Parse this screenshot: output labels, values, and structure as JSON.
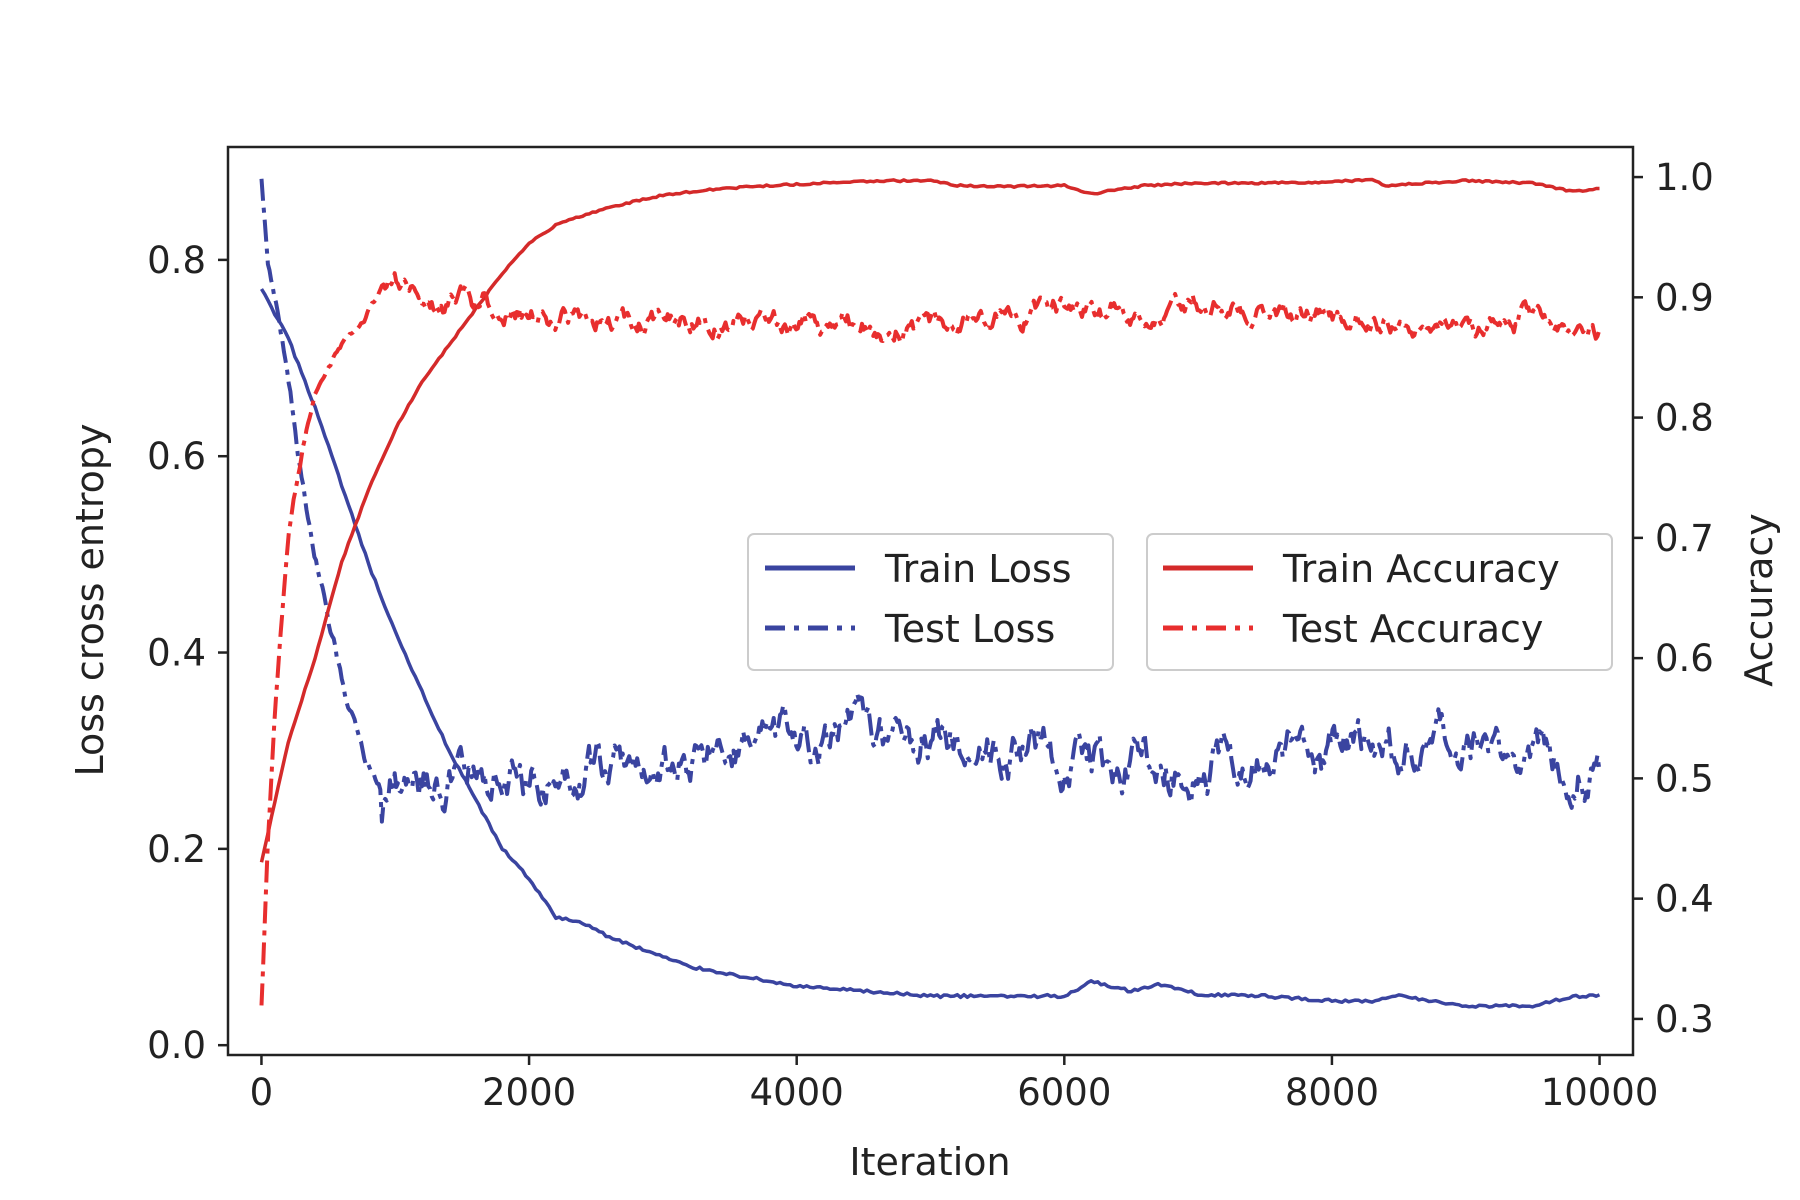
{
  "chart_data": {
    "type": "line",
    "title": "",
    "xlabel": "Iteration",
    "ylabel_left": "Loss cross entropy",
    "ylabel_right": "Accuracy",
    "xlim": [
      -250,
      10250
    ],
    "ylim_left": [
      -0.01,
      0.915
    ],
    "ylim_right": [
      0.27,
      1.025
    ],
    "x_ticks": [
      0,
      2000,
      4000,
      6000,
      8000,
      10000
    ],
    "x_tick_labels": [
      "0",
      "2000",
      "4000",
      "6000",
      "8000",
      "10000"
    ],
    "y_left_ticks": [
      0.0,
      0.2,
      0.4,
      0.6,
      0.8
    ],
    "y_left_tick_labels": [
      "0.0",
      "0.2",
      "0.4",
      "0.6",
      "0.8"
    ],
    "y_right_ticks": [
      0.3,
      0.4,
      0.5,
      0.6,
      0.7,
      0.8,
      0.9,
      1.0
    ],
    "y_right_tick_labels": [
      "0.3",
      "0.4",
      "0.5",
      "0.6",
      "0.7",
      "0.8",
      "0.9",
      "1.0"
    ],
    "colors": {
      "loss": "#3a44a0",
      "train_accuracy": "#d42a2a",
      "test_accuracy": "#e82e2e"
    },
    "legend": {
      "loss": [
        {
          "label": "Train Loss",
          "style": "solid"
        },
        {
          "label": "Test Loss",
          "style": "dashdot"
        }
      ],
      "accuracy": [
        {
          "label": "Train Accuracy",
          "style": "solid"
        },
        {
          "label": "Test Accuracy",
          "style": "dashdot"
        }
      ],
      "placement": "center-right"
    },
    "series": [
      {
        "name": "Train Loss",
        "axis": "left",
        "style": "solid",
        "color": "#3a44a0",
        "x": [
          0,
          200,
          400,
          600,
          800,
          1000,
          1200,
          1400,
          1600,
          1800,
          2000,
          2200,
          2400,
          2600,
          2800,
          3000,
          3200,
          3400,
          3600,
          3800,
          4000,
          4500,
          5000,
          5500,
          6000,
          6200,
          6500,
          6700,
          7000,
          7500,
          8000,
          8300,
          8500,
          9000,
          9500,
          9800,
          10000
        ],
        "values": [
          0.77,
          0.72,
          0.65,
          0.57,
          0.49,
          0.42,
          0.36,
          0.3,
          0.25,
          0.2,
          0.17,
          0.13,
          0.125,
          0.11,
          0.1,
          0.09,
          0.08,
          0.075,
          0.07,
          0.065,
          0.06,
          0.055,
          0.05,
          0.05,
          0.05,
          0.065,
          0.055,
          0.062,
          0.052,
          0.05,
          0.045,
          0.045,
          0.05,
          0.04,
          0.04,
          0.05,
          0.05
        ]
      },
      {
        "name": "Test Loss",
        "axis": "left",
        "style": "dashdot",
        "color": "#3a44a0",
        "x": [
          0,
          50,
          100,
          200,
          300,
          400,
          500,
          600,
          700,
          800,
          900,
          1000,
          1500,
          2000,
          2500,
          3000,
          3500,
          4000,
          4500,
          5000,
          5500,
          6000,
          6500,
          7000,
          7500,
          8000,
          8500,
          9000,
          9500,
          10000
        ],
        "values": [
          0.88,
          0.8,
          0.76,
          0.68,
          0.58,
          0.5,
          0.43,
          0.37,
          0.33,
          0.29,
          0.27,
          0.28,
          0.27,
          0.27,
          0.29,
          0.28,
          0.3,
          0.3,
          0.32,
          0.32,
          0.31,
          0.29,
          0.29,
          0.29,
          0.29,
          0.3,
          0.3,
          0.29,
          0.3,
          0.29
        ]
      },
      {
        "name": "Train Accuracy",
        "axis": "right",
        "style": "solid",
        "color": "#d42a2a",
        "x": [
          0,
          100,
          200,
          400,
          600,
          800,
          1000,
          1200,
          1400,
          1600,
          1800,
          2000,
          2200,
          2400,
          2600,
          2800,
          3000,
          3400,
          3800,
          4200,
          4600,
          5000,
          5200,
          5500,
          6000,
          6200,
          6600,
          7000,
          7500,
          8000,
          8300,
          8400,
          9000,
          9500,
          9800,
          10000
        ],
        "values": [
          0.43,
          0.48,
          0.53,
          0.6,
          0.68,
          0.74,
          0.79,
          0.83,
          0.86,
          0.89,
          0.92,
          0.945,
          0.96,
          0.968,
          0.975,
          0.98,
          0.985,
          0.99,
          0.993,
          0.995,
          0.997,
          0.997,
          0.993,
          0.992,
          0.993,
          0.986,
          0.993,
          0.995,
          0.995,
          0.996,
          0.998,
          0.993,
          0.997,
          0.995,
          0.988,
          0.99
        ]
      },
      {
        "name": "Test Accuracy",
        "axis": "right",
        "style": "dashdot",
        "color": "#e82e2e",
        "x": [
          0,
          50,
          100,
          200,
          300,
          400,
          500,
          600,
          700,
          800,
          900,
          1000,
          1100,
          1200,
          1500,
          2000,
          2500,
          3000,
          3500,
          4000,
          4500,
          5000,
          5500,
          6000,
          6500,
          7000,
          7500,
          8000,
          8500,
          9000,
          9500,
          10000
        ],
        "values": [
          0.31,
          0.45,
          0.55,
          0.7,
          0.77,
          0.82,
          0.845,
          0.86,
          0.87,
          0.89,
          0.905,
          0.915,
          0.9,
          0.89,
          0.895,
          0.89,
          0.88,
          0.88,
          0.88,
          0.875,
          0.88,
          0.875,
          0.885,
          0.89,
          0.89,
          0.895,
          0.885,
          0.885,
          0.88,
          0.88,
          0.885,
          0.875
        ]
      }
    ]
  }
}
